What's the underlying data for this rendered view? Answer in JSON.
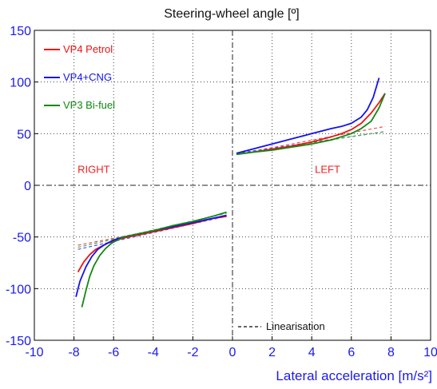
{
  "chart_data": {
    "type": "line",
    "title": "Steering-wheel angle  [º]",
    "xlabel": "Lateral acceleration  [m/s²]",
    "ylabel": "",
    "xlim": [
      -10,
      10
    ],
    "ylim": [
      -150,
      150
    ],
    "x_ticks": [
      -10,
      -8,
      -6,
      -4,
      -2,
      0,
      2,
      4,
      6,
      8,
      10
    ],
    "y_ticks": [
      150,
      100,
      50,
      0,
      -50,
      -100,
      -150
    ],
    "grid": true,
    "legend_position": "top-left",
    "region_labels": [
      {
        "text": "RIGHT",
        "x": -7.0,
        "y": 12
      },
      {
        "text": "LEFT",
        "x": 4.8,
        "y": 12
      }
    ],
    "linearisation_label": "Linearisation",
    "series": [
      {
        "name": "VP4 Petrol",
        "color": "#ee1111",
        "curves": [
          [
            [
              -7.8,
              -84
            ],
            [
              -7.5,
              -74
            ],
            [
              -7.2,
              -67
            ],
            [
              -6.9,
              -62
            ],
            [
              -6.6,
              -59
            ],
            [
              -6.3,
              -56
            ],
            [
              -6.0,
              -54
            ],
            [
              -5.5,
              -51
            ],
            [
              -5.0,
              -49
            ],
            [
              -4.0,
              -45
            ],
            [
              -3.0,
              -41
            ],
            [
              -2.0,
              -37
            ],
            [
              -1.0,
              -32
            ],
            [
              -0.3,
              -30
            ]
          ],
          [
            [
              0.2,
              30
            ],
            [
              1,
              32
            ],
            [
              2,
              35
            ],
            [
              3,
              38
            ],
            [
              4,
              42
            ],
            [
              5,
              47
            ],
            [
              5.5,
              50
            ],
            [
              6,
              54
            ],
            [
              6.5,
              60
            ],
            [
              7,
              70
            ],
            [
              7.4,
              80
            ],
            [
              7.7,
              89
            ]
          ]
        ]
      },
      {
        "name": "VP4+CNG",
        "color": "#1111ee",
        "curves": [
          [
            [
              -7.9,
              -108
            ],
            [
              -7.7,
              -93
            ],
            [
              -7.4,
              -79
            ],
            [
              -7.1,
              -69
            ],
            [
              -6.8,
              -62
            ],
            [
              -6.5,
              -58
            ],
            [
              -6.2,
              -55
            ],
            [
              -6.0,
              -53
            ],
            [
              -5.5,
              -50
            ],
            [
              -5.0,
              -48
            ],
            [
              -4.0,
              -44
            ],
            [
              -3.0,
              -40
            ],
            [
              -2.0,
              -36
            ],
            [
              -1.0,
              -32
            ],
            [
              -0.3,
              -29
            ]
          ],
          [
            [
              0.2,
              31
            ],
            [
              1,
              35
            ],
            [
              2,
              40
            ],
            [
              3,
              45
            ],
            [
              4,
              50
            ],
            [
              5,
              55
            ],
            [
              5.5,
              57
            ],
            [
              6,
              60
            ],
            [
              6.5,
              66
            ],
            [
              6.8,
              73
            ],
            [
              7.1,
              85
            ],
            [
              7.4,
              104
            ]
          ]
        ]
      },
      {
        "name": "VP3 Bi-fuel",
        "color": "#118811",
        "curves": [
          [
            [
              -7.6,
              -118
            ],
            [
              -7.4,
              -102
            ],
            [
              -7.2,
              -88
            ],
            [
              -7.0,
              -78
            ],
            [
              -6.7,
              -68
            ],
            [
              -6.4,
              -61
            ],
            [
              -6.1,
              -56
            ],
            [
              -5.8,
              -53
            ],
            [
              -5.5,
              -50
            ],
            [
              -5.0,
              -48
            ],
            [
              -4.0,
              -44
            ],
            [
              -3.0,
              -39
            ],
            [
              -2.0,
              -35
            ],
            [
              -1.0,
              -30
            ],
            [
              -0.3,
              -26
            ]
          ],
          [
            [
              0.2,
              30
            ],
            [
              1,
              32
            ],
            [
              2,
              34
            ],
            [
              3,
              37
            ],
            [
              4,
              40
            ],
            [
              5,
              44
            ],
            [
              5.5,
              47
            ],
            [
              6,
              50
            ],
            [
              6.5,
              55
            ],
            [
              7,
              62
            ],
            [
              7.4,
              75
            ],
            [
              7.7,
              89
            ]
          ]
        ]
      }
    ],
    "linearisation": [
      {
        "color": "#ee5555",
        "points": [
          [
            -7.8,
            -58
          ],
          [
            -0.3,
            -30
          ]
        ]
      },
      {
        "color": "#5555ee",
        "points": [
          [
            -7.8,
            -62
          ],
          [
            -0.3,
            -30
          ]
        ]
      },
      {
        "color": "#55aa55",
        "points": [
          [
            -7.8,
            -60
          ],
          [
            -0.3,
            -27
          ]
        ]
      },
      {
        "color": "#ee5555",
        "points": [
          [
            0.2,
            30
          ],
          [
            7.7,
            57
          ]
        ]
      },
      {
        "color": "#5555ee",
        "points": [
          [
            0.2,
            31
          ],
          [
            7.7,
            52
          ]
        ]
      },
      {
        "color": "#55aa55",
        "points": [
          [
            0.2,
            30
          ],
          [
            7.7,
            52
          ]
        ]
      }
    ]
  }
}
